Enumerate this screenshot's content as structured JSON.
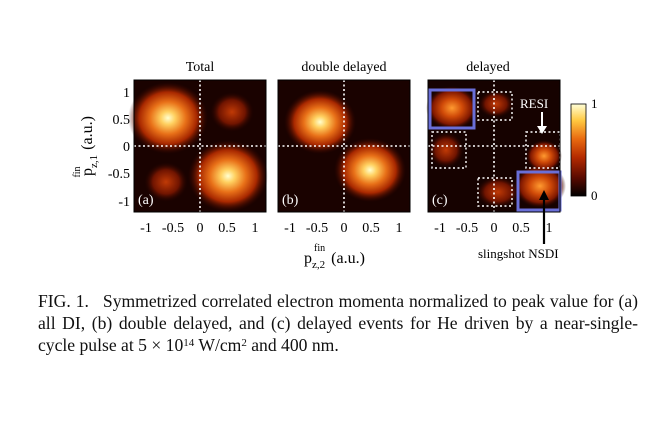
{
  "figure": {
    "panels": [
      {
        "title": "Total",
        "label": "(a)"
      },
      {
        "title": "double delayed",
        "label": "(b)"
      },
      {
        "title": "delayed",
        "label": "(c)"
      }
    ],
    "x_ticks": [
      "-1",
      "-0.5",
      "0",
      "0.5",
      "1"
    ],
    "y_ticks": [
      "1",
      "0.5",
      "0",
      "-0.5",
      "-1"
    ],
    "x_axis_label": {
      "main": "p",
      "sup": "fin",
      "sub": "z,2",
      "unit": "(a.u.)"
    },
    "y_axis_label": {
      "main": "p",
      "sup": "fin",
      "sub": "z,1",
      "unit": "(a.u.)"
    },
    "colorbar": {
      "max_label": "1",
      "min_label": "0"
    },
    "annotations": {
      "resi": "RESI",
      "slingshot": "slingshot NSDI"
    },
    "colors": {
      "box_outline": "#6a6fd8",
      "grid_dots": "#ffffff",
      "colormap": [
        "#000000",
        "#5a0a00",
        "#b42a00",
        "#e86a10",
        "#ffc840",
        "#ffffd8"
      ]
    }
  },
  "caption": {
    "label": "FIG. 1.",
    "text_1": "Symmetrized correlated electron momenta normalized to peak value for (a) all DI, (b) double delayed, and (c) delayed events for He driven by a near-single-cycle pulse at 5 × 10",
    "exponent": "14",
    "text_2": " W/cm",
    "exponent_2": "2",
    "text_3": " and 400 nm."
  }
}
